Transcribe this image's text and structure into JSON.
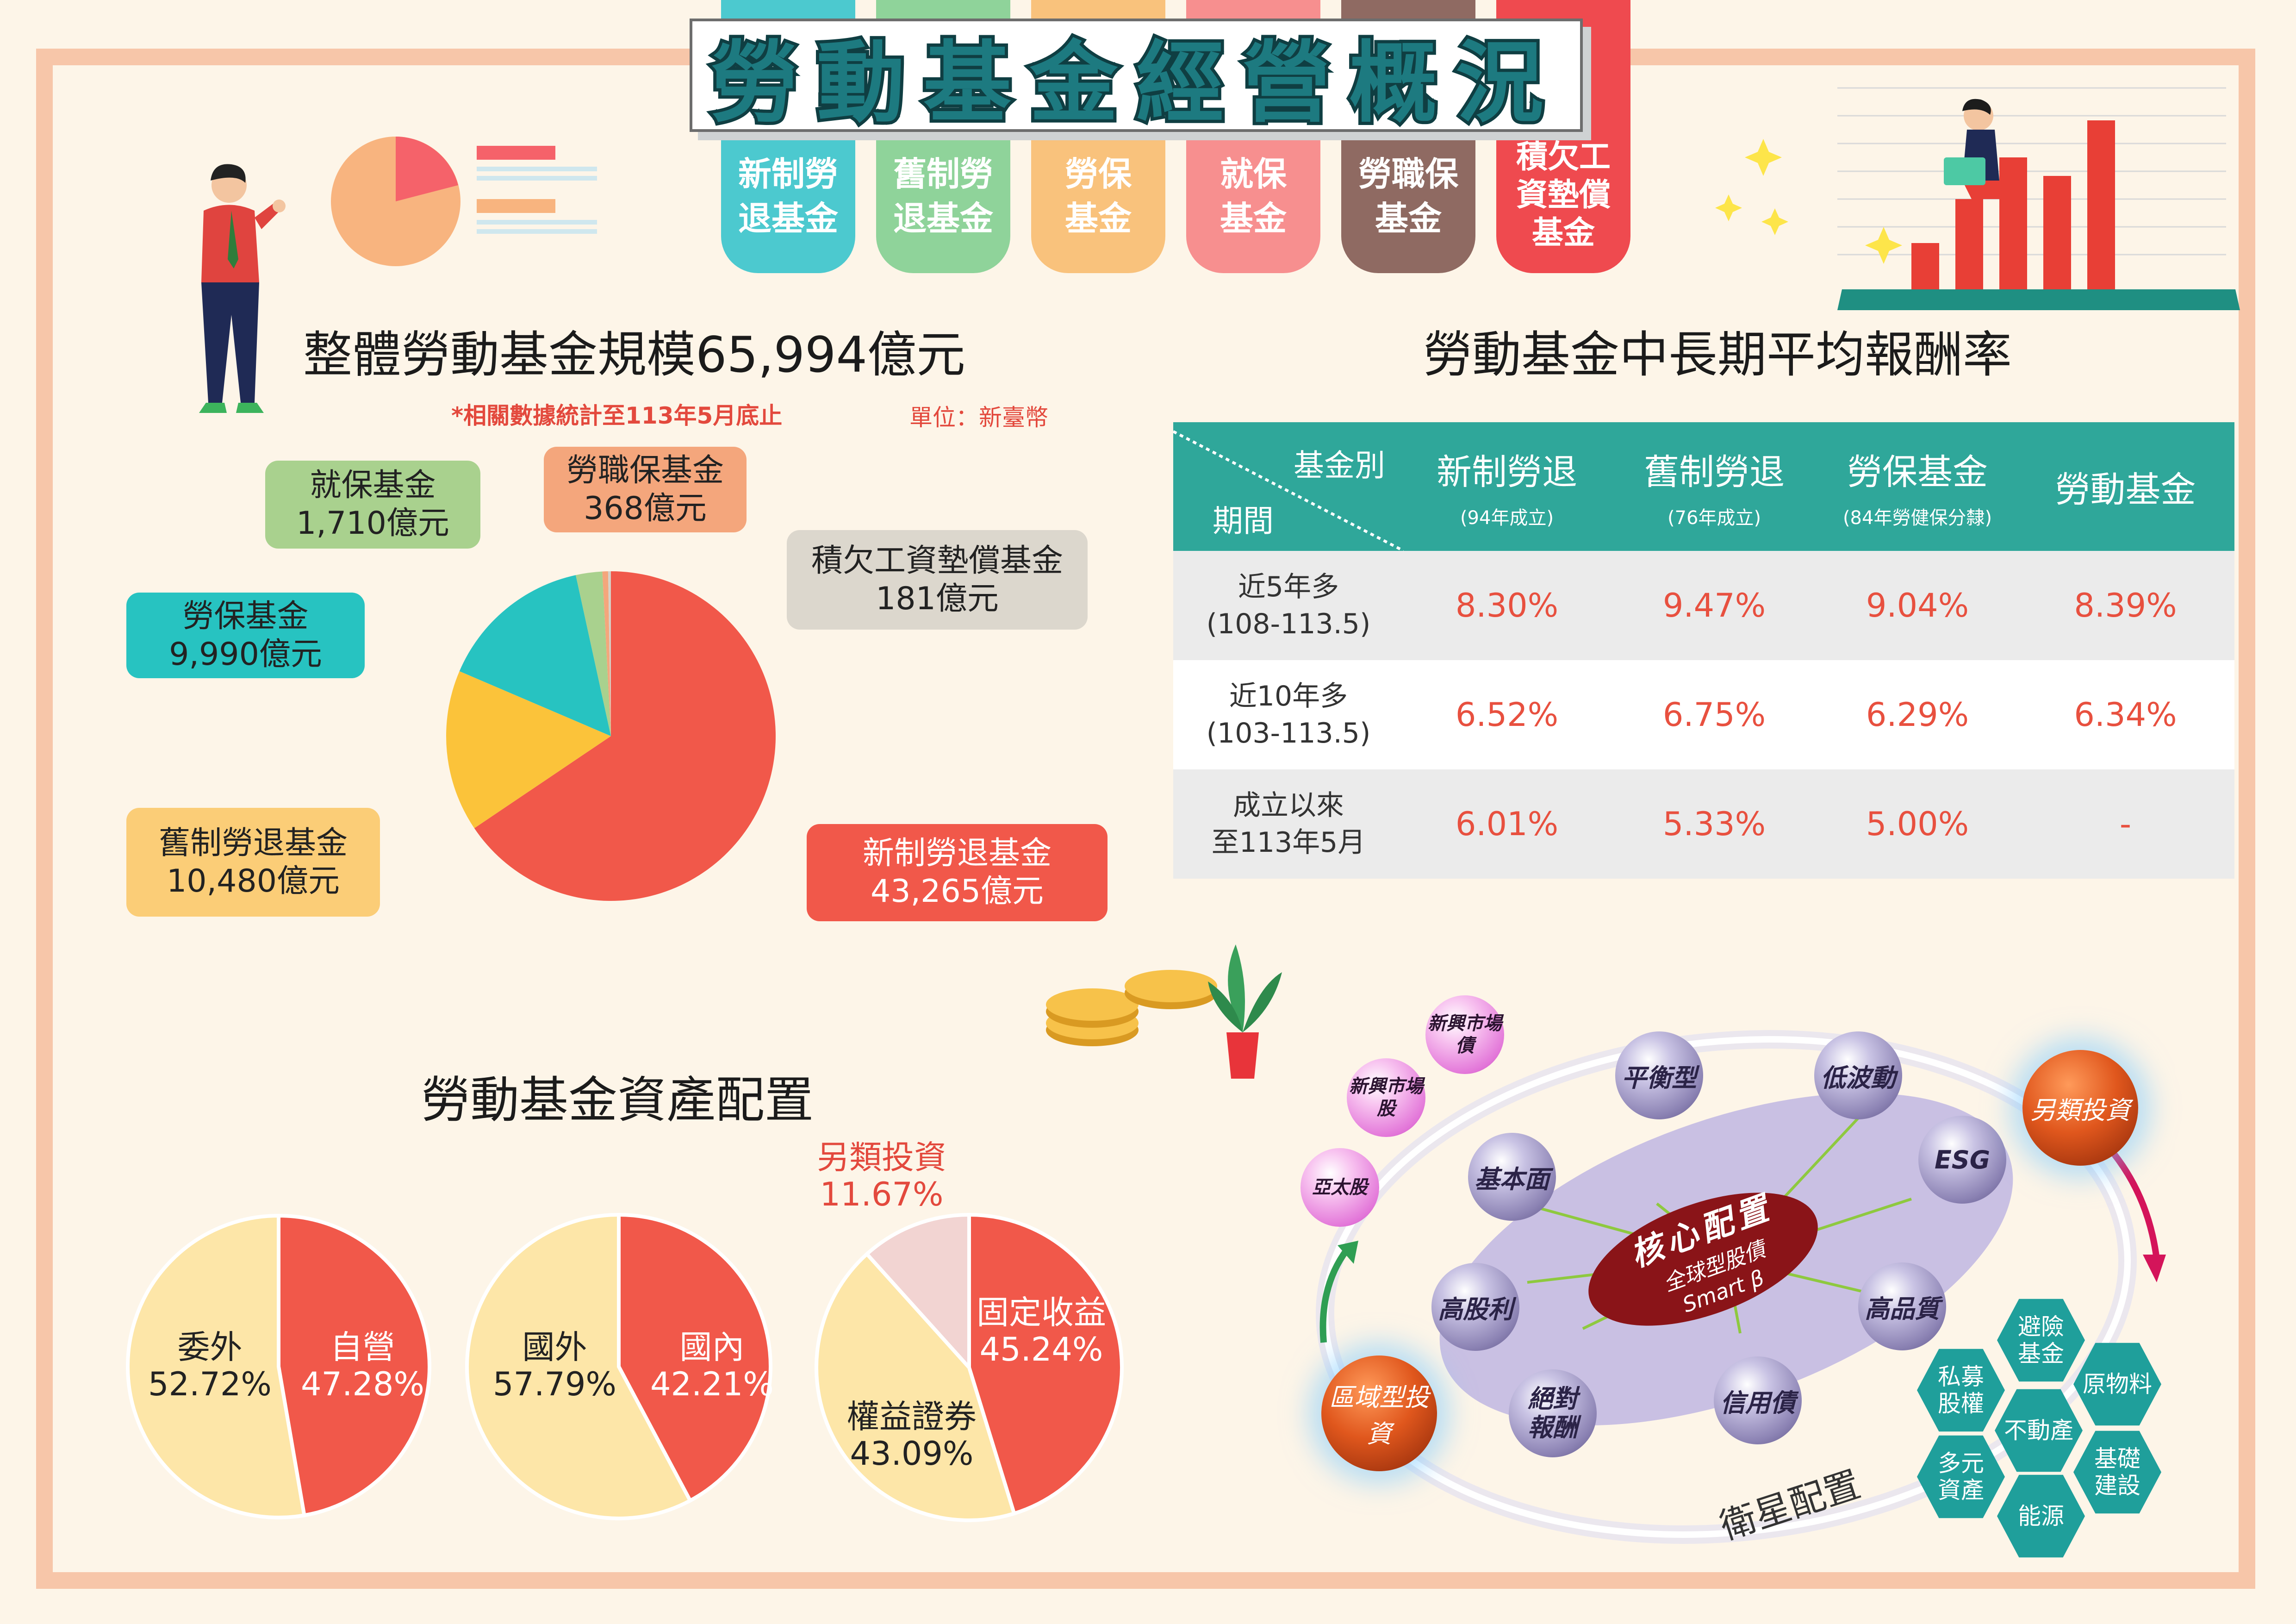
{
  "title": "勞動基金經營概況",
  "fund_tabs": [
    {
      "label": "新制勞\n退基金",
      "color": "#4cc9cf"
    },
    {
      "label": "舊制勞\n退基金",
      "color": "#8fd39a"
    },
    {
      "label": "勞保\n基金",
      "color": "#f9c27c"
    },
    {
      "label": "就保\n基金",
      "color": "#f78f8f"
    },
    {
      "label": "勞職保\n基金",
      "color": "#8f6a62"
    },
    {
      "label": "積欠工\n資墊償\n基金",
      "color": "#ef4a4f"
    }
  ],
  "size_section": {
    "heading": "整體勞動基金規模65,994億元",
    "note": "*相關數據統計至113年5月底止",
    "unit": "單位：新臺幣",
    "labels": [
      {
        "name": "就保基金",
        "value": "1,710億元"
      },
      {
        "name": "勞職保基金",
        "value": "368億元"
      },
      {
        "name": "積欠工資墊償基金",
        "value": "181億元"
      },
      {
        "name": "勞保基金",
        "value": "9,990億元"
      },
      {
        "name": "舊制勞退基金",
        "value": "10,480億元"
      },
      {
        "name": "新制勞退基金",
        "value": "43,265億元"
      }
    ]
  },
  "returns_section": {
    "heading": "勞動基金中長期平均報酬率",
    "corner_top": "基金別",
    "corner_bottom": "期間",
    "columns": [
      {
        "name": "新制勞退",
        "sub": "(94年成立)"
      },
      {
        "name": "舊制勞退",
        "sub": "(76年成立)"
      },
      {
        "name": "勞保基金",
        "sub": "(84年勞健保分隸)"
      },
      {
        "name": "勞動基金",
        "sub": ""
      }
    ],
    "rows": [
      {
        "period": "近5年多\n(108-113.5)",
        "values": [
          "8.30%",
          "9.47%",
          "9.04%",
          "8.39%"
        ]
      },
      {
        "period": "近10年多\n(103-113.5)",
        "values": [
          "6.52%",
          "6.75%",
          "6.29%",
          "6.34%"
        ]
      },
      {
        "period": "成立以來\n至113年5月",
        "values": [
          "6.01%",
          "5.33%",
          "5.00%",
          "-"
        ]
      }
    ]
  },
  "allocation_section": {
    "heading": "勞動基金資產配置",
    "pie1": [
      {
        "name": "委外",
        "pct": "52.72%"
      },
      {
        "name": "自營",
        "pct": "47.28%"
      }
    ],
    "pie2": [
      {
        "name": "國外",
        "pct": "57.79%"
      },
      {
        "name": "國內",
        "pct": "42.21%"
      }
    ],
    "pie3": [
      {
        "name": "固定收益",
        "pct": "45.24%"
      },
      {
        "name": "權益證券",
        "pct": "43.09%"
      },
      {
        "name": "另類投資",
        "pct": "11.67%"
      }
    ]
  },
  "strategy": {
    "core_title": "核心配置",
    "core_sub1": "全球型股債",
    "core_sub2": "Smart β",
    "satellite": "衛星配置",
    "nodes": [
      "平衡型",
      "低波動",
      "ESG",
      "高品質",
      "信用債",
      "絕對\n報酬",
      "高股利",
      "基本面"
    ],
    "pink_nodes": [
      "新興市場\n債",
      "新興市場\n股",
      "亞太股"
    ],
    "regional": "區域型投資",
    "alternative": "另類投資",
    "hexes": [
      "避險\n基金",
      "私募\n股權",
      "原物料",
      "不動產",
      "多元\n資產",
      "基礎\n建設",
      "能源"
    ]
  },
  "chart_data": [
    {
      "type": "pie",
      "title": "整體勞動基金規模65,994億元",
      "categories": [
        "新制勞退基金",
        "舊制勞退基金",
        "勞保基金",
        "就保基金",
        "勞職保基金",
        "積欠工資墊償基金"
      ],
      "values": [
        43265,
        10480,
        9990,
        1710,
        368,
        181
      ],
      "colors": [
        "#f1584a",
        "#fbc33a",
        "#27c3c1",
        "#a9d18e",
        "#f4a67c",
        "#d6d1c8"
      ]
    },
    {
      "type": "pie",
      "categories": [
        "自營",
        "委外"
      ],
      "values": [
        47.28,
        52.72
      ],
      "colors": [
        "#f1584a",
        "#fde6a8"
      ]
    },
    {
      "type": "pie",
      "categories": [
        "國內",
        "國外"
      ],
      "values": [
        42.21,
        57.79
      ],
      "colors": [
        "#f1584a",
        "#fde6a8"
      ]
    },
    {
      "type": "pie",
      "categories": [
        "固定收益",
        "權益證券",
        "另類投資"
      ],
      "values": [
        45.24,
        43.09,
        11.67
      ],
      "colors": [
        "#f1584a",
        "#fde6a8",
        "#f2d4d2"
      ]
    }
  ]
}
